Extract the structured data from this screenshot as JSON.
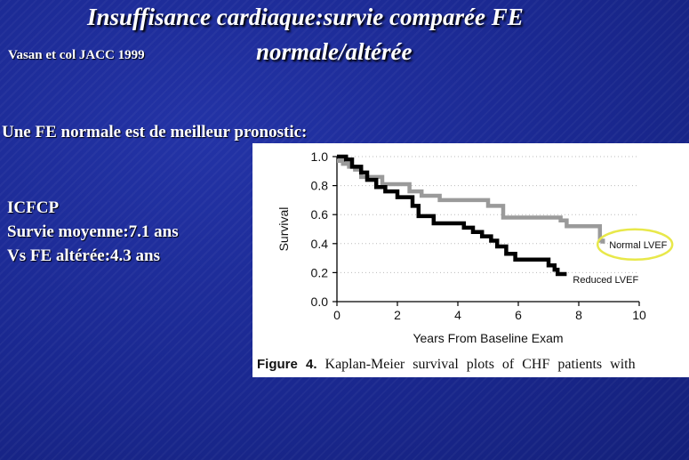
{
  "slide": {
    "title_line1": "Insuffisance cardiaque:survie comparée FE",
    "title_line2": "normale/altérée",
    "reference": "Vasan et col JACC 1999",
    "subtitle": "Une  FE normale est de meilleur pronostic:",
    "bullets": [
      "ICFCP",
      "Survie moyenne:7.1 ans",
      "Vs FE altérée:4.3 ans"
    ]
  },
  "figure": {
    "caption_label": "Figure 4.",
    "caption_text": "Kaplan-Meier survival plots of CHF patients with"
  },
  "colors": {
    "background": "#1a2a8c",
    "normal_series": "#9a9a9a",
    "reduced_series": "#000000",
    "highlight_ellipse": "#e8e84a"
  },
  "chart_data": {
    "type": "line",
    "step": true,
    "xlabel": "Years From Baseline Exam",
    "ylabel": "Survival",
    "xlim": [
      0,
      10
    ],
    "ylim": [
      0,
      1.0
    ],
    "xticks": [
      0,
      2,
      4,
      6,
      8,
      10
    ],
    "yticks": [
      0.0,
      0.2,
      0.4,
      0.6,
      0.8,
      1.0
    ],
    "ytick_labels": [
      "0.0",
      "0.2",
      "0.4",
      "0.6",
      "0.8",
      "1.0"
    ],
    "grid": "horizontal dotted",
    "highlight": "Normal LVEF",
    "series": [
      {
        "name": "Normal LVEF",
        "x": [
          0,
          0.2,
          0.4,
          0.6,
          0.8,
          1.5,
          2.4,
          2.8,
          3.4,
          4.0,
          5.0,
          5.5,
          6.5,
          7.4,
          7.6,
          8.6,
          8.7,
          8.8
        ],
        "y": [
          0.97,
          0.95,
          0.93,
          0.91,
          0.86,
          0.81,
          0.76,
          0.73,
          0.7,
          0.7,
          0.66,
          0.58,
          0.58,
          0.56,
          0.52,
          0.52,
          0.42,
          0.4
        ]
      },
      {
        "name": "Reduced LVEF",
        "x": [
          0,
          0.3,
          0.5,
          0.8,
          1.0,
          1.3,
          1.6,
          2.0,
          2.5,
          2.7,
          3.2,
          4.2,
          4.5,
          4.8,
          5.1,
          5.3,
          5.6,
          5.9,
          6.8,
          7.0,
          7.2,
          7.3,
          7.6
        ],
        "y": [
          1.0,
          0.98,
          0.93,
          0.89,
          0.84,
          0.79,
          0.76,
          0.72,
          0.66,
          0.59,
          0.54,
          0.51,
          0.48,
          0.45,
          0.42,
          0.38,
          0.33,
          0.29,
          0.29,
          0.25,
          0.22,
          0.19,
          0.19
        ]
      }
    ]
  }
}
